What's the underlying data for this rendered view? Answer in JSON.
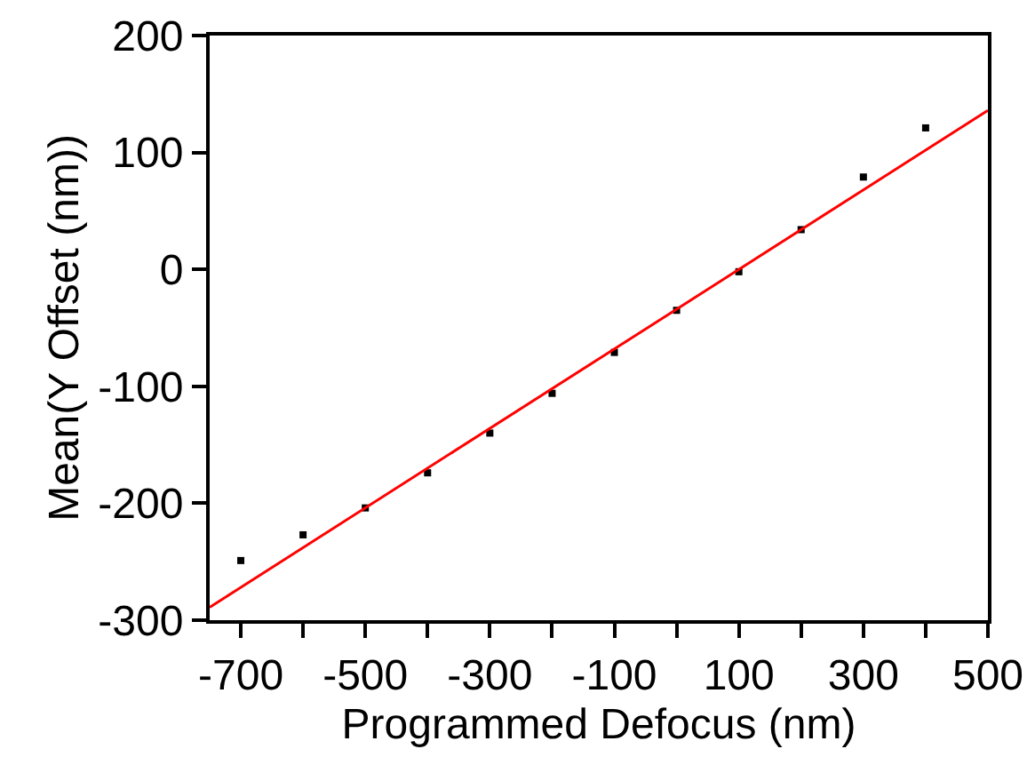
{
  "chart_data": {
    "type": "scatter",
    "xlabel": "Programmed Defocus (nm)",
    "ylabel": "Mean(Y Offset (nm))",
    "marker": "square",
    "grid": false,
    "x": [
      -700,
      -600,
      -500,
      -400,
      -300,
      -200,
      -100,
      0,
      100,
      200,
      300,
      400
    ],
    "series": [
      {
        "color": "#000000",
        "values": [
          -249,
          -227,
          -204,
          -174,
          -140,
          -106,
          -71,
          -35,
          -2,
          34,
          79,
          121
        ]
      },
      {
        "type": "line",
        "marker": "none",
        "color": "#ff0000",
        "x": [
          -750,
          500
        ],
        "values": [
          -289,
          136
        ]
      }
    ],
    "xlim": [
      -750,
      500
    ],
    "xticks": [
      -700,
      {
        "value": -600,
        "label": null
      },
      -500,
      {
        "value": -400,
        "label": null
      },
      -300,
      {
        "value": -200,
        "label": null
      },
      -100,
      {
        "value": 0,
        "label": null
      },
      100,
      {
        "value": 200,
        "label": null
      },
      300,
      {
        "value": 400,
        "label": null
      },
      500
    ],
    "ylim": [
      -300,
      200
    ],
    "yticks": [
      -300,
      -200,
      -100,
      0,
      100,
      200
    ]
  }
}
